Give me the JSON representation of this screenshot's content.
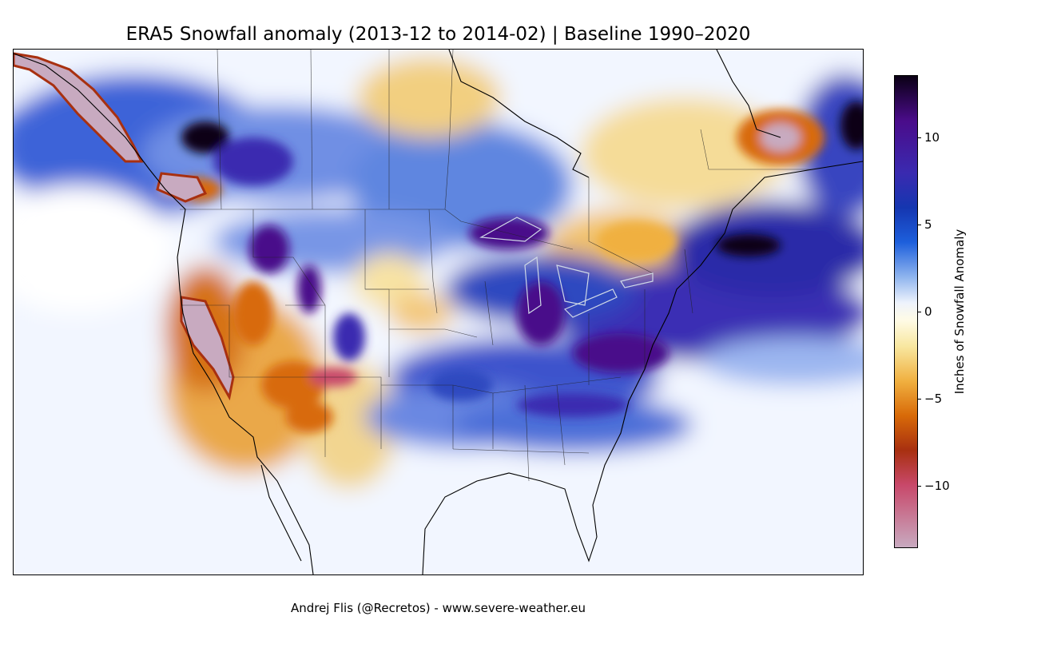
{
  "title": "ERA5 Snowfall anomaly (2013-12 to 2014-02) | Baseline 1990–2020",
  "map": {
    "region": "North America",
    "land_outline_color": "#000000",
    "lake_outline_color": "#cfd8e6"
  },
  "colorbar": {
    "label": "Inches of Snowfall Anomaly",
    "ticks": [
      {
        "value": 10,
        "label": "10"
      },
      {
        "value": 5,
        "label": "5"
      },
      {
        "value": 0,
        "label": "0"
      },
      {
        "value": -5,
        "label": "−5"
      },
      {
        "value": -10,
        "label": "−10"
      }
    ],
    "range": [
      -13.6,
      13.6
    ],
    "stops": [
      {
        "value": 13.6,
        "color": "#0a0014"
      },
      {
        "value": 11,
        "color": "#4a0c8a"
      },
      {
        "value": 8,
        "color": "#3a2ab0"
      },
      {
        "value": 6,
        "color": "#1536b0"
      },
      {
        "value": 4,
        "color": "#1d5fdc"
      },
      {
        "value": 2,
        "color": "#8fb4ee"
      },
      {
        "value": 0.5,
        "color": "#eef3fc"
      },
      {
        "value": -0.5,
        "color": "#fffbe6"
      },
      {
        "value": -2,
        "color": "#f8e7a0"
      },
      {
        "value": -4,
        "color": "#f0b040"
      },
      {
        "value": -6,
        "color": "#d86a08"
      },
      {
        "value": -8,
        "color": "#a83010"
      },
      {
        "value": -10,
        "color": "#c8486a"
      },
      {
        "value": -13.6,
        "color": "#c8aac0"
      }
    ]
  },
  "credit": "Andrej Flis (@Recretos) - www.severe-weather.eu"
}
